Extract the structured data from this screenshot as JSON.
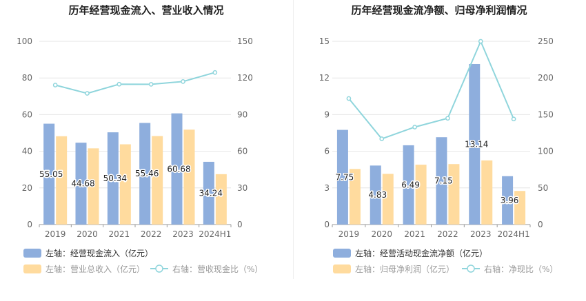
{
  "chart_data": [
    {
      "type": "bar",
      "title": "历年经营现金流入、营业收入情况",
      "categories": [
        "2019",
        "2020",
        "2021",
        "2022",
        "2023",
        "2024H1"
      ],
      "left_axis": {
        "ylim": [
          0,
          100
        ],
        "ticks": [
          "0",
          "20",
          "40",
          "60",
          "80",
          "100"
        ]
      },
      "right_axis": {
        "ylim": [
          0,
          150
        ],
        "ticks": [
          "0",
          "30",
          "60",
          "90",
          "120",
          "150"
        ]
      },
      "series": [
        {
          "name": "左轴：经营现金流入（亿元）",
          "type": "bar",
          "axis": "left",
          "color": "#8eaedd",
          "values": [
            55.05,
            44.68,
            50.34,
            55.46,
            60.68,
            34.24
          ],
          "labels": [
            "55.05",
            "44.68",
            "50.34",
            "55.46",
            "60.68",
            "34.24"
          ]
        },
        {
          "name": "左轴：营业总收入（亿元）",
          "type": "bar",
          "axis": "left",
          "color": "#ffdb9e",
          "values": [
            48.2,
            41.6,
            43.8,
            48.3,
            51.8,
            27.5
          ]
        },
        {
          "name": "右轴：营收现金比（%）",
          "type": "line",
          "axis": "right",
          "color": "#8fd5dc",
          "values": [
            114.2,
            107.4,
            114.9,
            114.8,
            117.1,
            124.5
          ]
        }
      ],
      "legend": [
        "左轴：经营现金流入（亿元）",
        "左轴：营业总收入（亿元）",
        "右轴：营收现金比（%）"
      ]
    },
    {
      "type": "bar",
      "title": "历年经营现金流净额、归母净利润情况",
      "categories": [
        "2019",
        "2020",
        "2021",
        "2022",
        "2023",
        "2024H1"
      ],
      "left_axis": {
        "ylim": [
          0,
          15
        ],
        "ticks": [
          "0",
          "3",
          "6",
          "9",
          "12",
          "15"
        ]
      },
      "right_axis": {
        "ylim": [
          0,
          250
        ],
        "ticks": [
          "0",
          "50",
          "100",
          "150",
          "200",
          "250"
        ]
      },
      "series": [
        {
          "name": "左轴：经营活动现金流净额（亿元）",
          "type": "bar",
          "axis": "left",
          "color": "#8eaedd",
          "values": [
            7.75,
            4.83,
            6.49,
            7.15,
            13.14,
            3.96
          ],
          "labels": [
            "7.75",
            "4.83",
            "6.49",
            "7.15",
            "13.14",
            "3.96"
          ]
        },
        {
          "name": "左轴：归母净利润（亿元）",
          "type": "bar",
          "axis": "left",
          "color": "#ffdb9e",
          "values": [
            4.55,
            4.15,
            4.9,
            4.95,
            5.25,
            2.75
          ]
        },
        {
          "name": "右轴：净现比（%）",
          "type": "line",
          "axis": "right",
          "color": "#8fd5dc",
          "values": [
            172,
            117,
            133,
            145,
            250,
            144
          ]
        }
      ],
      "legend": [
        "左轴：经营活动现金流净额（亿元）",
        "左轴：归母净利润（亿元）",
        "右轴：净现比（%）"
      ]
    }
  ]
}
